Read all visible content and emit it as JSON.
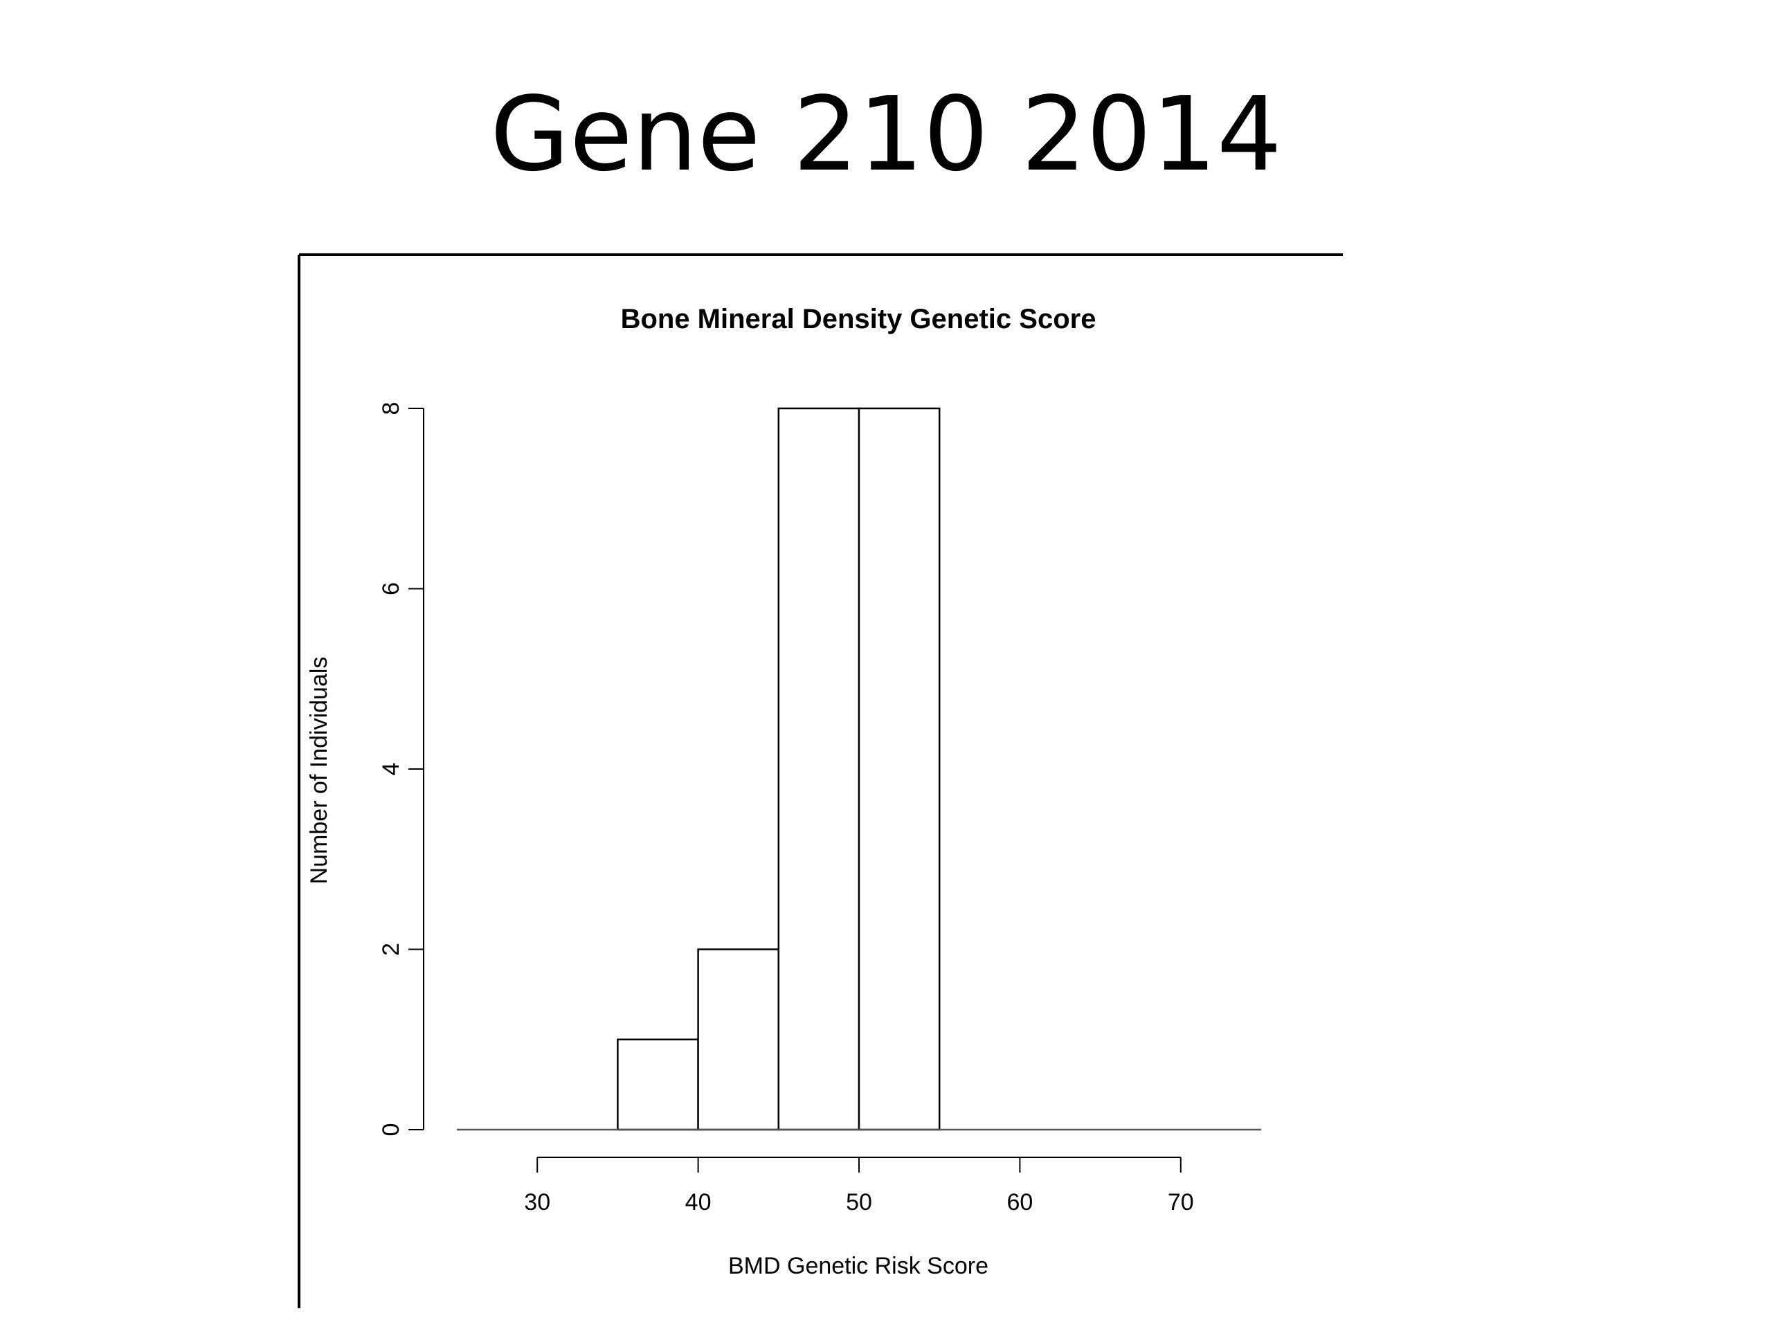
{
  "slide": {
    "title": "Gene 210 2014"
  },
  "chart_data": {
    "type": "bar",
    "subtype": "histogram",
    "title": "Bone Mineral Density Genetic Score",
    "xlabel": "BMD Genetic Risk Score",
    "ylabel": "Number of Individuals",
    "bins": [
      {
        "start": 25,
        "end": 30,
        "count": 0
      },
      {
        "start": 30,
        "end": 35,
        "count": 0
      },
      {
        "start": 35,
        "end": 40,
        "count": 1
      },
      {
        "start": 40,
        "end": 45,
        "count": 2
      },
      {
        "start": 45,
        "end": 50,
        "count": 8
      },
      {
        "start": 50,
        "end": 55,
        "count": 8
      },
      {
        "start": 55,
        "end": 60,
        "count": 0
      },
      {
        "start": 60,
        "end": 65,
        "count": 0
      },
      {
        "start": 65,
        "end": 70,
        "count": 0
      },
      {
        "start": 70,
        "end": 75,
        "count": 0
      }
    ],
    "xlim": [
      25,
      75
    ],
    "ylim": [
      0,
      8
    ],
    "x_ticks": [
      30,
      40,
      50,
      60,
      70
    ],
    "y_ticks": [
      0,
      2,
      4,
      6,
      8
    ],
    "grid": false,
    "legend": "none",
    "colors": {
      "bar_fill": "#ffffff",
      "bar_stroke": "#000000",
      "axis": "#000000"
    }
  }
}
